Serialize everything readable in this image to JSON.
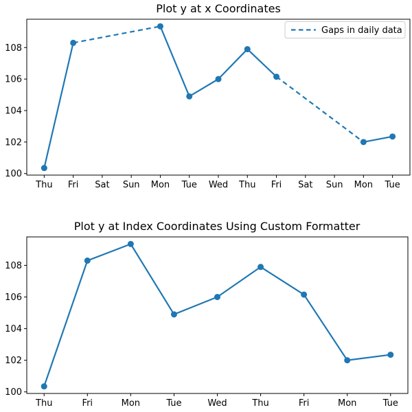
{
  "figure": {
    "background": "#ffffff",
    "accent_color": "#1f77b4"
  },
  "chart_data": [
    {
      "type": "line",
      "title": "Plot y at x Coordinates",
      "x": [
        0,
        1,
        4,
        5,
        6,
        7,
        8,
        11,
        12
      ],
      "y": [
        100.35,
        108.3,
        109.35,
        104.9,
        106.0,
        107.9,
        106.15,
        102.0,
        102.35
      ],
      "x_ticks": [
        0,
        1,
        2,
        3,
        4,
        5,
        6,
        7,
        8,
        9,
        10,
        11,
        12
      ],
      "x_tick_labels": [
        "Thu",
        "Fri",
        "Sat",
        "Sun",
        "Mon",
        "Tue",
        "Wed",
        "Thu",
        "Fri",
        "Sat",
        "Sun",
        "Mon",
        "Tue"
      ],
      "y_ticks": [
        100,
        102,
        104,
        106,
        108
      ],
      "y_tick_labels": [
        "100",
        "102",
        "104",
        "106",
        "108"
      ],
      "xlim": [
        -0.6,
        12.6
      ],
      "ylim": [
        99.9,
        109.8
      ],
      "grid": false,
      "line_color": "#1f77b4",
      "marker": "circle",
      "gap_dashed": true,
      "legend": {
        "label": "Gaps in daily data",
        "line_style": "dashed",
        "position": "upper right"
      }
    },
    {
      "type": "line",
      "title": "Plot y at Index Coordinates Using Custom Formatter",
      "x": [
        0,
        1,
        2,
        3,
        4,
        5,
        6,
        7,
        8
      ],
      "y": [
        100.35,
        108.3,
        109.35,
        104.9,
        106.0,
        107.9,
        106.15,
        102.0,
        102.35
      ],
      "x_ticks": [
        0,
        1,
        2,
        3,
        4,
        5,
        6,
        7,
        8
      ],
      "x_tick_labels": [
        "Thu",
        "Fri",
        "Mon",
        "Tue",
        "Wed",
        "Thu",
        "Fri",
        "Mon",
        "Tue"
      ],
      "y_ticks": [
        100,
        102,
        104,
        106,
        108
      ],
      "y_tick_labels": [
        "100",
        "102",
        "104",
        "106",
        "108"
      ],
      "xlim": [
        -0.4,
        8.4
      ],
      "ylim": [
        99.9,
        109.8
      ],
      "grid": false,
      "line_color": "#1f77b4",
      "marker": "circle",
      "gap_dashed": false,
      "legend": null
    }
  ]
}
